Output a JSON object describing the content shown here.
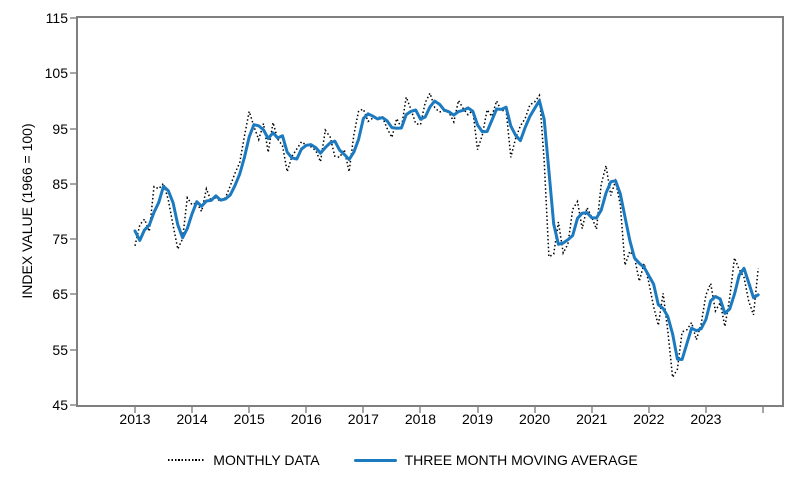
{
  "figure": {
    "background_color": "#ffffff",
    "border_color": "#7f7f7f",
    "tick_mark_color": "#a6a6a6",
    "text_color": "#000000",
    "legend": {
      "monthly_label": "MONTHLY DATA",
      "moving_average_label": "THREE MONTH MOVING AVERAGE"
    }
  },
  "chart_data": {
    "type": "line",
    "title": "",
    "xlabel": "",
    "ylabel": "INDEX VALUE (1966 = 100)",
    "ylim": [
      45,
      115
    ],
    "y_ticks": [
      45,
      55,
      65,
      75,
      85,
      95,
      105,
      115
    ],
    "grid": false,
    "legend_position": "bottom-center",
    "x_start_month": "2013-01",
    "x_end_month": "2023-12",
    "x_tick_years": [
      2013,
      2014,
      2015,
      2016,
      2017,
      2018,
      2019,
      2020,
      2021,
      2022,
      2023
    ],
    "x_unlabeled_tick_years": [
      2024
    ],
    "series": [
      {
        "name": "MONTHLY DATA",
        "style": "dotted",
        "color": "#000000",
        "values": [
          73.8,
          77.6,
          78.6,
          76.4,
          84.5,
          84.1,
          85.1,
          82.1,
          77.5,
          73.2,
          75.1,
          82.5,
          81.2,
          81.6,
          80.0,
          84.1,
          81.9,
          82.5,
          81.8,
          82.5,
          84.6,
          86.9,
          88.8,
          93.6,
          98.1,
          95.4,
          93.0,
          95.9,
          90.7,
          96.1,
          93.1,
          91.9,
          87.2,
          90.0,
          91.3,
          92.6,
          92.0,
          91.7,
          91.0,
          89.0,
          94.7,
          93.5,
          90.0,
          89.8,
          91.2,
          87.2,
          93.8,
          98.2,
          98.5,
          96.3,
          96.9,
          97.0,
          97.1,
          95.0,
          93.4,
          96.8,
          95.1,
          100.7,
          98.5,
          95.9,
          95.7,
          99.7,
          101.4,
          98.8,
          98.0,
          98.2,
          97.9,
          96.2,
          100.1,
          98.6,
          97.5,
          98.3,
          91.2,
          93.8,
          98.4,
          97.2,
          100.0,
          98.2,
          98.4,
          89.8,
          93.2,
          95.5,
          96.8,
          99.3,
          99.8,
          101.0,
          89.1,
          71.8,
          72.3,
          78.1,
          72.5,
          74.1,
          80.4,
          81.8,
          76.9,
          80.7,
          79.0,
          76.8,
          84.9,
          88.3,
          82.9,
          85.5,
          81.2,
          70.3,
          72.8,
          71.7,
          67.4,
          70.6,
          67.2,
          62.8,
          59.4,
          65.2,
          58.4,
          50.0,
          51.5,
          58.2,
          58.6,
          59.9,
          56.8,
          59.7,
          64.9,
          67.0,
          62.0,
          63.5,
          59.2,
          64.4,
          71.6,
          69.5,
          68.1,
          63.8,
          61.3,
          69.7
        ]
      },
      {
        "name": "THREE MONTH MOVING AVERAGE",
        "style": "solid",
        "color": "#1c7ac0",
        "derived_from": "MONTHLY DATA",
        "window": 3,
        "seed_values_prior_months": [
          82.7,
          72.9
        ]
      }
    ]
  }
}
